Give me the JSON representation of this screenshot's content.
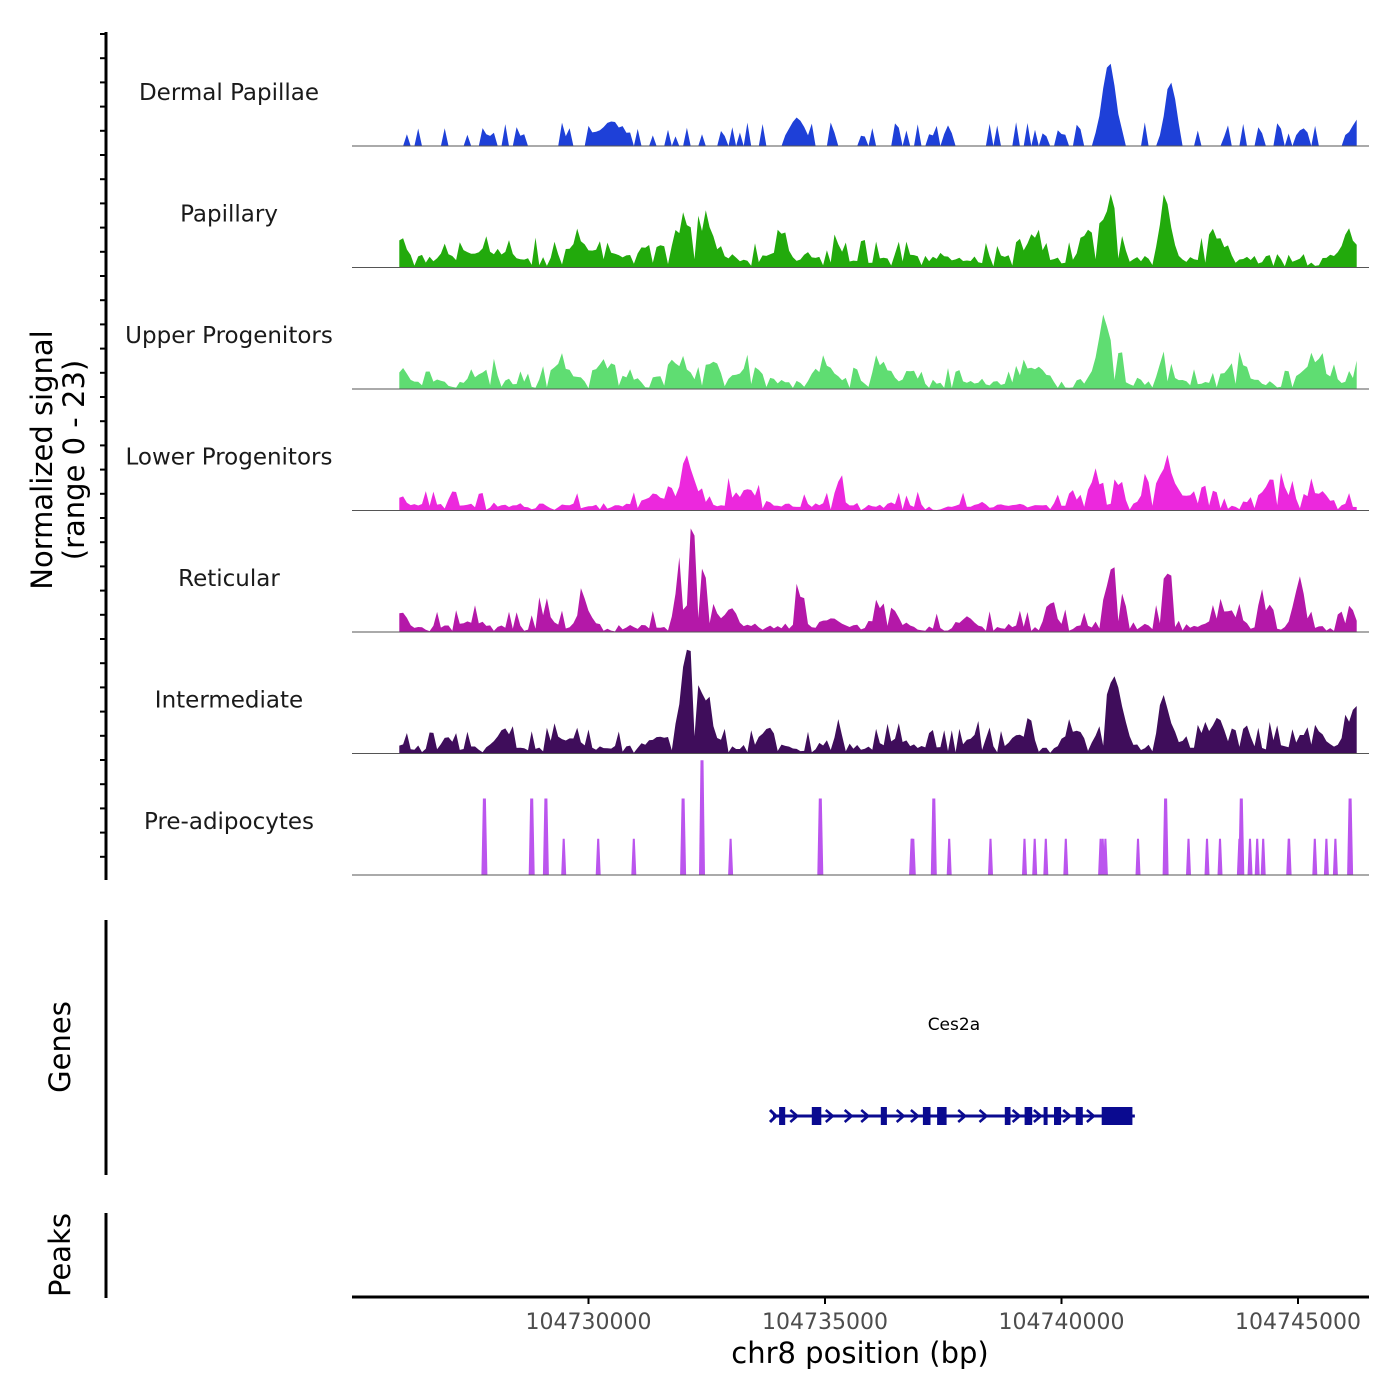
{
  "chart_data": {
    "type": "area",
    "plot": "coverage-tracks",
    "signal_axis_title_line1": "Normalized signal",
    "signal_axis_title_line2": "(range 0 - 23)",
    "signal_range": [
      0,
      23
    ],
    "x_axis_title": "chr8 position (bp)",
    "x_range": [
      104725000,
      104746500
    ],
    "x_ticks": [
      104730000,
      104735000,
      104740000,
      104745000
    ],
    "x_tick_labels": [
      "104730000",
      "104735000",
      "104740000",
      "104745000"
    ],
    "bin_size_bp": 80,
    "peak_scale_max": 23,
    "tracks": [
      {
        "name": "Dermal Papillae",
        "color": "#1e40d8",
        "style": "sparse",
        "baseline": 0,
        "noise": 1.2,
        "peaks": [
          [
            104730500,
            4,
            400
          ],
          [
            104734400,
            5,
            250
          ],
          [
            104735800,
            2,
            200
          ],
          [
            104740000,
            2.5,
            200
          ],
          [
            104741000,
            17,
            200
          ],
          [
            104742300,
            13,
            160
          ],
          [
            104745100,
            2.5,
            250
          ],
          [
            104746300,
            5,
            300
          ]
        ]
      },
      {
        "name": "Papillary",
        "color": "#22aa0c",
        "style": "dense",
        "baseline": 1.8,
        "noise": 1.2,
        "peaks": [
          [
            104726050,
            4,
            120
          ],
          [
            104727900,
            1.5,
            800
          ],
          [
            104729800,
            2.5,
            500
          ],
          [
            104731300,
            2.5,
            400
          ],
          [
            104732050,
            6.5,
            250
          ],
          [
            104732500,
            6,
            250
          ],
          [
            104734100,
            5.5,
            150
          ],
          [
            104735200,
            4,
            150
          ],
          [
            104739400,
            5,
            200
          ],
          [
            104740800,
            6.5,
            300
          ],
          [
            104741100,
            8,
            200
          ],
          [
            104742200,
            12,
            150
          ],
          [
            104743200,
            6,
            200
          ],
          [
            104746100,
            5,
            200
          ]
        ]
      },
      {
        "name": "Upper Progenitors",
        "color": "#5fdd72",
        "style": "dense",
        "baseline": 1.3,
        "noise": 1.0,
        "peaks": [
          [
            104726050,
            3,
            120
          ],
          [
            104727900,
            3,
            200
          ],
          [
            104729400,
            3,
            300
          ],
          [
            104730500,
            3.5,
            250
          ],
          [
            104731800,
            4,
            300
          ],
          [
            104732600,
            4,
            250
          ],
          [
            104733400,
            3.5,
            300
          ],
          [
            104735000,
            3,
            300
          ],
          [
            104736200,
            3.5,
            250
          ],
          [
            104739400,
            3,
            300
          ],
          [
            104740900,
            12,
            200
          ],
          [
            104741300,
            6,
            200
          ],
          [
            104742200,
            7,
            150
          ],
          [
            104743700,
            4,
            300
          ],
          [
            104745400,
            4,
            300
          ],
          [
            104746300,
            3,
            150
          ]
        ]
      },
      {
        "name": "Lower Progenitors",
        "color": "#ec28dd",
        "style": "dense",
        "baseline": 0.7,
        "noise": 1.1,
        "peaks": [
          [
            104726050,
            2,
            120
          ],
          [
            104727000,
            1.5,
            100
          ],
          [
            104731400,
            2,
            400
          ],
          [
            104732100,
            8,
            200
          ],
          [
            104732800,
            4,
            250
          ],
          [
            104733400,
            3,
            300
          ],
          [
            104735300,
            5,
            120
          ],
          [
            104740700,
            5,
            300
          ],
          [
            104741100,
            5,
            200
          ],
          [
            104741800,
            4,
            150
          ],
          [
            104742200,
            8,
            250
          ],
          [
            104743000,
            4,
            400
          ],
          [
            104744500,
            5,
            400
          ],
          [
            104745400,
            3,
            300
          ]
        ]
      },
      {
        "name": "Reticular",
        "color": "#b418a8",
        "style": "dense",
        "baseline": 0.6,
        "noise": 1.3,
        "peaks": [
          [
            104726050,
            3,
            150
          ],
          [
            104727500,
            1.5,
            300
          ],
          [
            104729000,
            3,
            300
          ],
          [
            104729900,
            6,
            150
          ],
          [
            104732050,
            22,
            200
          ],
          [
            104732400,
            11,
            250
          ],
          [
            104733000,
            4,
            200
          ],
          [
            104734400,
            9,
            150
          ],
          [
            104735100,
            2,
            200
          ],
          [
            104736300,
            5,
            250
          ],
          [
            104738000,
            2,
            200
          ],
          [
            104739800,
            2,
            250
          ],
          [
            104741100,
            12,
            250
          ],
          [
            104742200,
            11,
            200
          ],
          [
            104743500,
            3.5,
            300
          ],
          [
            104744200,
            5,
            200
          ],
          [
            104745000,
            8,
            150
          ],
          [
            104746300,
            9,
            150
          ]
        ]
      },
      {
        "name": "Intermediate",
        "color": "#3f0d5b",
        "style": "dense",
        "baseline": 0.7,
        "noise": 1.4,
        "peaks": [
          [
            104727000,
            2,
            150
          ],
          [
            104728200,
            4,
            200
          ],
          [
            104729500,
            2,
            400
          ],
          [
            104731500,
            2.5,
            300
          ],
          [
            104732100,
            20,
            200
          ],
          [
            104732450,
            9,
            250
          ],
          [
            104733800,
            4,
            200
          ],
          [
            104735200,
            2.5,
            300
          ],
          [
            104736500,
            2,
            300
          ],
          [
            104738200,
            2.5,
            300
          ],
          [
            104739200,
            3,
            300
          ],
          [
            104740300,
            3.5,
            300
          ],
          [
            104741100,
            15,
            250
          ],
          [
            104742200,
            8,
            200
          ],
          [
            104742800,
            5,
            200
          ],
          [
            104743300,
            6,
            200
          ],
          [
            104744200,
            4,
            300
          ],
          [
            104745300,
            5,
            300
          ],
          [
            104746200,
            9,
            200
          ]
        ]
      },
      {
        "name": "Pre-adipocytes",
        "color": "#bb55ee",
        "style": "spikes",
        "baseline": 0,
        "noise": 0,
        "peaks": [
          [
            104727800,
            16,
            100
          ],
          [
            104728800,
            16,
            100
          ],
          [
            104729100,
            16,
            100
          ],
          [
            104732000,
            16,
            100
          ],
          [
            104732400,
            24,
            100
          ],
          [
            104734900,
            16,
            100
          ],
          [
            104737300,
            16,
            100
          ],
          [
            104742200,
            16,
            100
          ],
          [
            104743800,
            16,
            100
          ],
          [
            104746100,
            16,
            100
          ]
        ]
      }
    ],
    "gene": {
      "name": "Ces2a",
      "strand": "+",
      "color": "#0a0a90",
      "start": 104733900,
      "end": 104741550,
      "exons": [
        [
          104734030,
          104734160
        ],
        [
          104734720,
          104734920
        ],
        [
          104736180,
          104736310
        ],
        [
          104737070,
          104737230
        ],
        [
          104737370,
          104737570
        ],
        [
          104738800,
          104738920
        ],
        [
          104739220,
          104739380
        ],
        [
          104739620,
          104739680
        ],
        [
          104739840,
          104739990
        ],
        [
          104740300,
          104740450
        ],
        [
          104740850,
          104741500
        ]
      ],
      "arrows": [
        104734350,
        104735100,
        104735500,
        104735850,
        104736600,
        104736900,
        104737900,
        104738350,
        104739050,
        104739500,
        104740120,
        104740620
      ]
    },
    "panel_titles": {
      "genes": "Genes",
      "peaks": "Peaks"
    }
  }
}
